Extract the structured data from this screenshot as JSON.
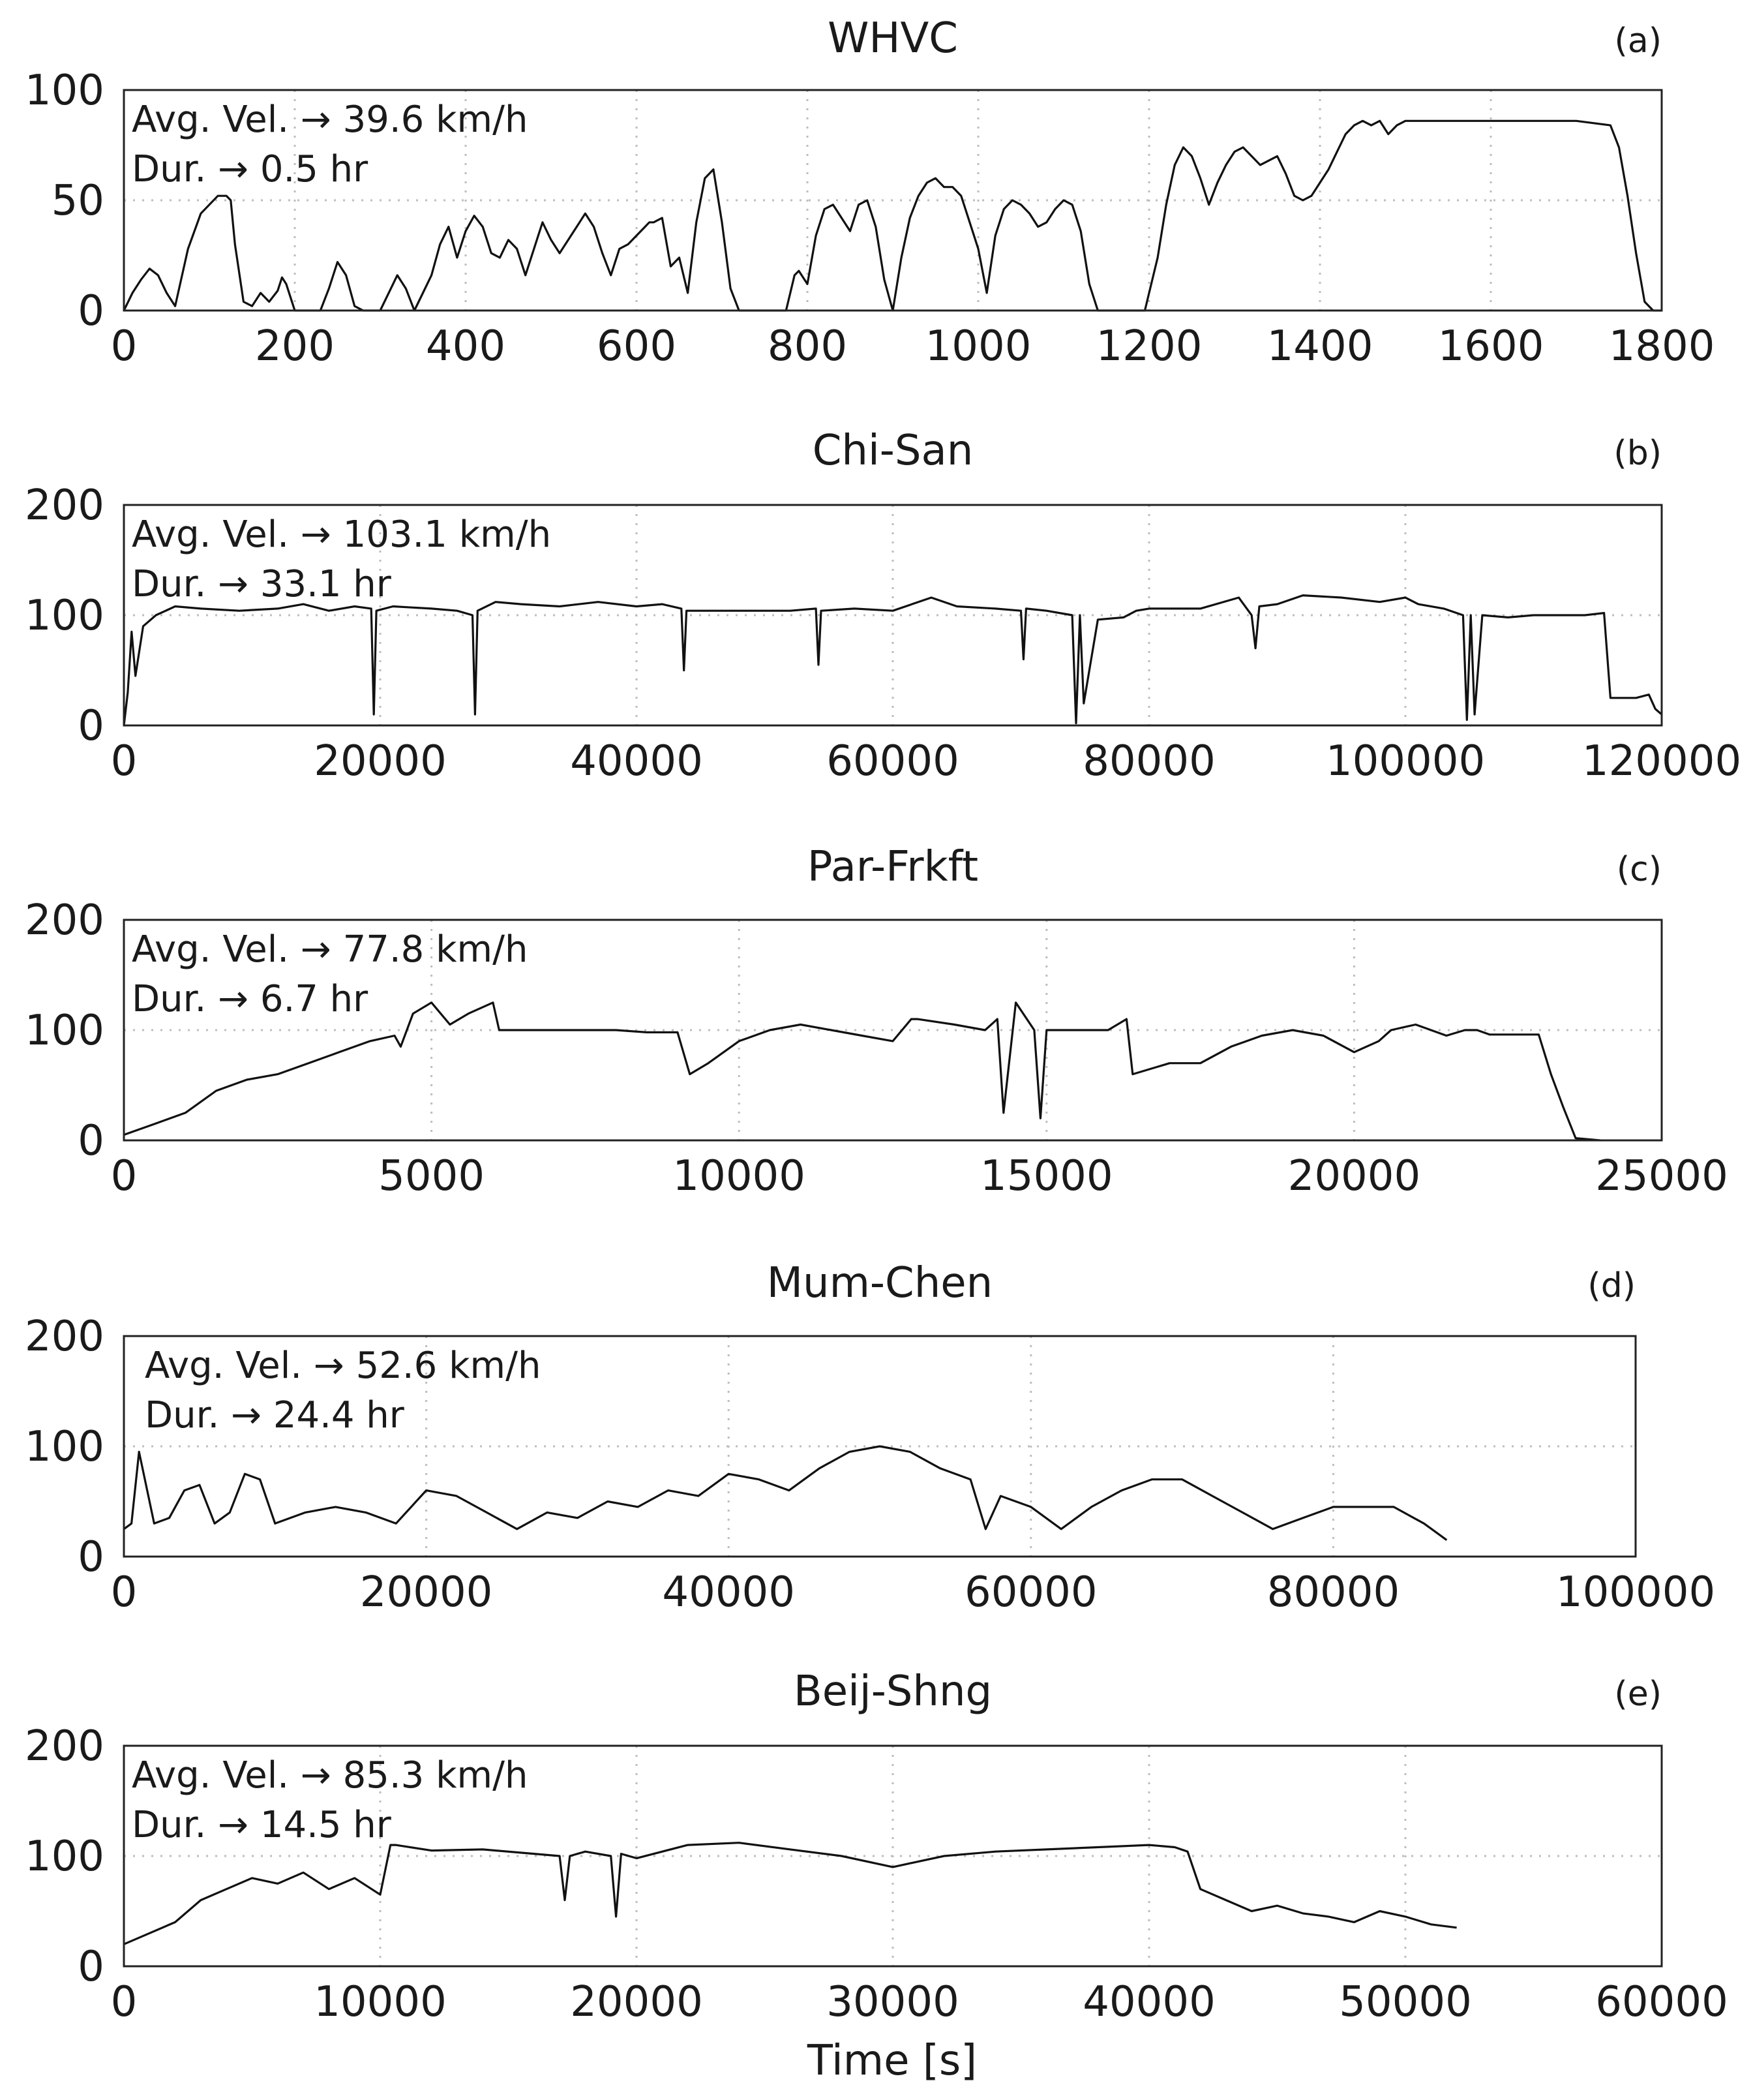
{
  "xlabel": "Time [s]",
  "chart_data": [
    {
      "type": "line",
      "title": "WHVC",
      "label": "(a)",
      "annotations": [
        "Avg. Vel. → 39.6 km/h",
        "Dur. → 0.5 hr"
      ],
      "xlim": [
        0,
        1800
      ],
      "ylim": [
        0,
        100
      ],
      "xticks": [
        0,
        200,
        400,
        600,
        800,
        1000,
        1200,
        1400,
        1600,
        1800
      ],
      "yticks": [
        0,
        50,
        100
      ],
      "xticklabels": [
        "0",
        "200",
        "400",
        "600",
        "800",
        "1000",
        "1200",
        "1400",
        "1600",
        "1800"
      ],
      "yticklabels": [
        "0",
        "50",
        "100"
      ],
      "grid": true,
      "series": [
        {
          "x": [
            0,
            10,
            20,
            30,
            40,
            50,
            60,
            75,
            90,
            110,
            120,
            125,
            130,
            140,
            150,
            160,
            170,
            180,
            185,
            190,
            200,
            210,
            230,
            240,
            250,
            260,
            270,
            280,
            290,
            300,
            320,
            330,
            340,
            350,
            360,
            370,
            380,
            390,
            400,
            410,
            420,
            430,
            440,
            450,
            460,
            470,
            480,
            490,
            500,
            510,
            530,
            540,
            550,
            560,
            570,
            580,
            590,
            600,
            610,
            615,
            620,
            630,
            640,
            650,
            660,
            670,
            680,
            690,
            700,
            710,
            720,
            750,
            775,
            780,
            785,
            790,
            800,
            810,
            820,
            830,
            840,
            850,
            860,
            870,
            880,
            890,
            900,
            910,
            920,
            930,
            940,
            950,
            960,
            970,
            980,
            990,
            1000,
            1010,
            1020,
            1030,
            1040,
            1050,
            1060,
            1070,
            1080,
            1090,
            1100,
            1110,
            1120,
            1130,
            1140,
            1150,
            1160,
            1180,
            1195,
            1200,
            1210,
            1220,
            1230,
            1240,
            1250,
            1260,
            1270,
            1280,
            1290,
            1300,
            1310,
            1320,
            1330,
            1340,
            1350,
            1360,
            1370,
            1380,
            1390,
            1400,
            1410,
            1420,
            1430,
            1440,
            1450,
            1460,
            1470,
            1480,
            1490,
            1500,
            1510,
            1520,
            1530,
            1540,
            1550,
            1600,
            1650,
            1700,
            1740,
            1750,
            1760,
            1770,
            1780,
            1790,
            1800
          ],
          "y": [
            0,
            8,
            14,
            19,
            16,
            8,
            2,
            28,
            44,
            52,
            52,
            50,
            30,
            4,
            2,
            8,
            4,
            9,
            15,
            12,
            0,
            0,
            0,
            10,
            22,
            16,
            2,
            0,
            0,
            0,
            16,
            10,
            0,
            8,
            16,
            30,
            38,
            24,
            36,
            43,
            38,
            26,
            24,
            32,
            28,
            16,
            28,
            40,
            32,
            26,
            38,
            44,
            38,
            26,
            16,
            28,
            30,
            34,
            38,
            40,
            40,
            42,
            20,
            24,
            8,
            40,
            60,
            64,
            40,
            10,
            0,
            0,
            0,
            8,
            16,
            18,
            12,
            34,
            46,
            48,
            42,
            36,
            48,
            50,
            38,
            14,
            0,
            24,
            42,
            52,
            58,
            60,
            56,
            56,
            52,
            40,
            28,
            8,
            34,
            46,
            50,
            48,
            44,
            38,
            40,
            46,
            50,
            48,
            36,
            12,
            0,
            0,
            0,
            0,
            0,
            8,
            24,
            48,
            66,
            74,
            70,
            60,
            48,
            58,
            66,
            72,
            74,
            70,
            66,
            68,
            70,
            62,
            52,
            50,
            52,
            58,
            64,
            72,
            80,
            84,
            86,
            84,
            86,
            80,
            84,
            86,
            86,
            86,
            86,
            86,
            86,
            86,
            86,
            86,
            84,
            74,
            52,
            26,
            4,
            0,
            0
          ]
        }
      ]
    },
    {
      "type": "line",
      "title": "Chi-San",
      "label": "(b)",
      "annotations": [
        "Avg. Vel. →  103.1 km/h",
        "Dur. → 33.1 hr"
      ],
      "xlim": [
        0,
        120000
      ],
      "ylim": [
        0,
        200
      ],
      "xticks": [
        0,
        20000,
        40000,
        60000,
        80000,
        100000,
        120000
      ],
      "yticks": [
        0,
        100,
        200
      ],
      "xticklabels": [
        "0",
        "20000",
        "40000",
        "60000",
        "80000",
        "100000",
        "120000"
      ],
      "yticklabels": [
        "0",
        "100",
        "200"
      ],
      "grid": true,
      "series": [
        {
          "x": [
            0,
            300,
            600,
            900,
            1500,
            2500,
            4000,
            6000,
            9000,
            12000,
            14000,
            16000,
            18000,
            19300,
            19500,
            19700,
            21000,
            24000,
            26000,
            27200,
            27400,
            27600,
            29000,
            31000,
            34000,
            37000,
            40000,
            42000,
            43500,
            43700,
            43900,
            46000,
            49000,
            52000,
            54000,
            54200,
            54400,
            57000,
            60000,
            63000,
            65000,
            68000,
            70000,
            70200,
            70400,
            72000,
            74000,
            74300,
            74600,
            74900,
            76000,
            78000,
            79000,
            80000,
            84000,
            87000,
            88000,
            88300,
            88600,
            90000,
            92000,
            95000,
            98000,
            100000,
            101000,
            103000,
            104500,
            104800,
            105100,
            105400,
            106000,
            108000,
            110000,
            112000,
            114000,
            115500,
            116000,
            118000,
            119000,
            119500,
            120000
          ],
          "y": [
            0,
            30,
            85,
            45,
            90,
            100,
            108,
            106,
            104,
            106,
            110,
            104,
            108,
            106,
            10,
            104,
            108,
            106,
            104,
            100,
            10,
            104,
            112,
            110,
            108,
            112,
            108,
            110,
            106,
            50,
            104,
            104,
            104,
            104,
            106,
            55,
            104,
            106,
            104,
            116,
            108,
            106,
            104,
            60,
            106,
            104,
            100,
            2,
            100,
            20,
            96,
            98,
            104,
            106,
            106,
            116,
            100,
            70,
            108,
            110,
            118,
            116,
            112,
            116,
            110,
            106,
            100,
            5,
            100,
            10,
            100,
            98,
            100,
            100,
            100,
            102,
            25,
            25,
            28,
            15,
            10
          ]
        }
      ]
    },
    {
      "type": "line",
      "title": "Par-Frkft",
      "label": "(c)",
      "annotations": [
        "Avg. Vel. →  77.8 km/h",
        "Dur. → 6.7 hr"
      ],
      "xlim": [
        0,
        25000
      ],
      "ylim": [
        0,
        200
      ],
      "xticks": [
        0,
        5000,
        10000,
        15000,
        20000,
        25000
      ],
      "yticks": [
        0,
        100,
        200
      ],
      "xticklabels": [
        "0",
        "5000",
        "10000",
        "15000",
        "20000",
        "25000"
      ],
      "yticklabels": [
        "0",
        "100",
        "200"
      ],
      "grid": true,
      "series": [
        {
          "x": [
            0,
            500,
            1000,
            1500,
            2000,
            2500,
            3000,
            3500,
            4000,
            4400,
            4500,
            4700,
            5000,
            5300,
            5600,
            6000,
            6100,
            7000,
            8000,
            8500,
            9000,
            9200,
            9500,
            10000,
            10500,
            11000,
            11500,
            12000,
            12500,
            12800,
            12900,
            13500,
            14000,
            14200,
            14300,
            14500,
            14800,
            14900,
            15000,
            16000,
            16300,
            16400,
            17000,
            17500,
            18000,
            18500,
            19000,
            19500,
            20000,
            20400,
            20600,
            21000,
            21500,
            21800,
            22000,
            22200,
            23000,
            23200,
            23400,
            23600,
            24000
          ],
          "y": [
            5,
            15,
            25,
            45,
            55,
            60,
            70,
            80,
            90,
            95,
            85,
            115,
            125,
            105,
            115,
            125,
            100,
            100,
            100,
            98,
            98,
            60,
            70,
            90,
            100,
            105,
            100,
            95,
            90,
            110,
            110,
            105,
            100,
            110,
            25,
            125,
            100,
            20,
            100,
            100,
            110,
            60,
            70,
            70,
            85,
            95,
            100,
            95,
            80,
            90,
            100,
            105,
            95,
            100,
            100,
            96,
            96,
            60,
            30,
            2,
            0
          ]
        }
      ]
    },
    {
      "type": "line",
      "title": "Mum-Chen",
      "label": "(d)",
      "annotations": [
        "Avg. Vel. →  52.6 km/h",
        "Dur. → 24.4 hr"
      ],
      "xlim": [
        0,
        100000
      ],
      "ylim": [
        0,
        200
      ],
      "xticks": [
        0,
        20000,
        40000,
        60000,
        80000,
        100000
      ],
      "yticks": [
        0,
        100,
        200
      ],
      "xticklabels": [
        "0",
        "20000",
        "40000",
        "60000",
        "80000",
        "100000"
      ],
      "yticklabels": [
        "0",
        "100",
        "200"
      ],
      "grid": true,
      "series": [
        {
          "x": [
            0,
            500,
            1000,
            2000,
            3000,
            4000,
            5000,
            6000,
            7000,
            8000,
            9000,
            10000,
            12000,
            14000,
            16000,
            18000,
            20000,
            22000,
            24000,
            26000,
            28000,
            30000,
            32000,
            34000,
            36000,
            38000,
            40000,
            42000,
            44000,
            46000,
            48000,
            50000,
            52000,
            54000,
            56000,
            57000,
            58000,
            60000,
            62000,
            64000,
            66000,
            68000,
            70000,
            72000,
            74000,
            76000,
            78000,
            80000,
            82000,
            84000,
            86000,
            87000,
            87500
          ],
          "y": [
            25,
            30,
            95,
            30,
            35,
            60,
            65,
            30,
            40,
            75,
            70,
            30,
            40,
            45,
            40,
            30,
            60,
            55,
            40,
            25,
            40,
            35,
            50,
            45,
            60,
            55,
            75,
            70,
            60,
            80,
            95,
            100,
            95,
            80,
            70,
            25,
            55,
            45,
            25,
            45,
            60,
            70,
            70,
            55,
            40,
            25,
            35,
            45,
            45,
            45,
            30,
            20,
            15
          ]
        }
      ]
    },
    {
      "type": "line",
      "title": "Beij-Shng",
      "label": "(e)",
      "annotations": [
        "Avg. Vel. →  85.3 km/h",
        "Dur. → 14.5 hr"
      ],
      "xlim": [
        0,
        60000
      ],
      "ylim": [
        0,
        200
      ],
      "xticks": [
        0,
        10000,
        20000,
        30000,
        40000,
        50000,
        60000
      ],
      "yticks": [
        0,
        100,
        200
      ],
      "xticklabels": [
        "0",
        "10000",
        "20000",
        "30000",
        "40000",
        "50000",
        "60000"
      ],
      "yticklabels": [
        "0",
        "100",
        "200"
      ],
      "grid": true,
      "series": [
        {
          "x": [
            0,
            1000,
            2000,
            3000,
            4000,
            5000,
            6000,
            7000,
            8000,
            9000,
            10000,
            10400,
            10600,
            12000,
            14000,
            16000,
            17000,
            17200,
            17400,
            18000,
            19000,
            19200,
            19400,
            20000,
            22000,
            24000,
            26000,
            28000,
            30000,
            32000,
            34000,
            36000,
            38000,
            40000,
            41000,
            41500,
            42000,
            43000,
            44000,
            45000,
            46000,
            47000,
            48000,
            49000,
            50000,
            51000,
            52000
          ],
          "y": [
            20,
            30,
            40,
            60,
            70,
            80,
            75,
            85,
            70,
            80,
            65,
            110,
            110,
            105,
            106,
            102,
            100,
            60,
            100,
            104,
            100,
            45,
            102,
            98,
            110,
            112,
            106,
            100,
            90,
            100,
            104,
            106,
            108,
            110,
            108,
            104,
            70,
            60,
            50,
            55,
            48,
            45,
            40,
            50,
            45,
            38,
            35
          ]
        }
      ]
    }
  ]
}
